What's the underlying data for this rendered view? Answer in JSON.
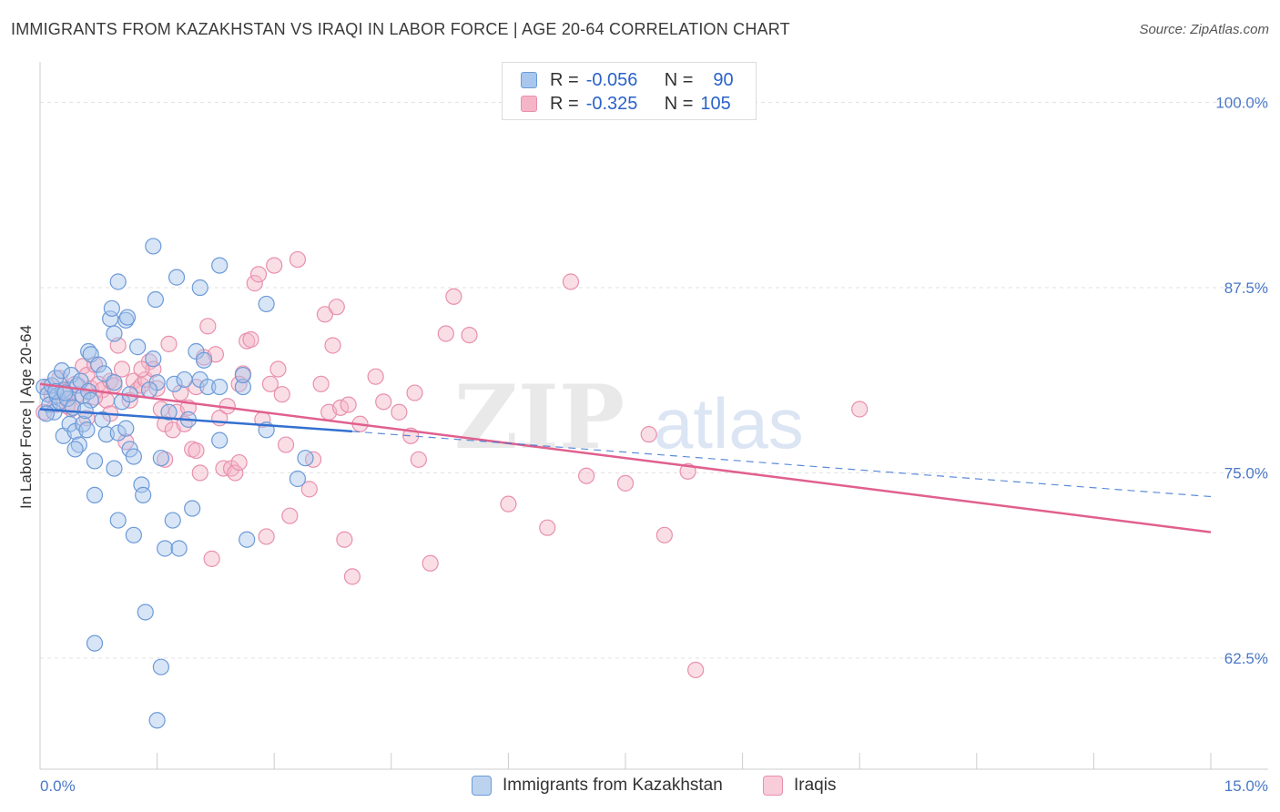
{
  "title": "IMMIGRANTS FROM KAZAKHSTAN VS IRAQI IN LABOR FORCE | AGE 20-64 CORRELATION CHART",
  "source": "Source: ZipAtlas.com",
  "watermark": {
    "zip": "ZIP",
    "atlas": "atlas"
  },
  "legend_top": {
    "rows": [
      {
        "r_label": "R =",
        "r_value": "-0.056",
        "n_label": "N =",
        "n_value": "90"
      },
      {
        "r_label": "R =",
        "r_value": "-0.325",
        "n_label": "N =",
        "n_value": "105"
      }
    ]
  },
  "legend_bottom": {
    "items": [
      "Immigrants from Kazakhstan",
      "Iraqis"
    ]
  },
  "colors": {
    "blue_fill": "#a9c6ec",
    "blue_stroke": "#6c9ad8",
    "blue_line": "#3370d0",
    "pink_fill": "#f4b5c8",
    "pink_stroke": "#e890ad",
    "pink_line": "#e0608e",
    "grid": "#e2e2e2",
    "tick_text": "#4a78c8"
  },
  "chart_data": {
    "type": "scatter",
    "title": "IMMIGRANTS FROM KAZAKHSTAN VS IRAQI IN LABOR FORCE | AGE 20-64 CORRELATION CHART",
    "xlabel": "",
    "ylabel": "In Labor Force | Age 20-64",
    "xlim": [
      0,
      15
    ],
    "ylim": [
      55,
      102
    ],
    "x_tick_labels": [
      "0.0%",
      "15.0%"
    ],
    "y_ticks": [
      62.5,
      75.0,
      87.5,
      100.0
    ],
    "y_tick_labels": [
      "62.5%",
      "75.0%",
      "87.5%",
      "100.0%"
    ],
    "grid": true,
    "legend_position": "top-center",
    "series": [
      {
        "name": "Immigrants from Kazakhstan",
        "r": -0.056,
        "n": 90,
        "trend": {
          "x": [
            0.0,
            4.0
          ],
          "y": [
            79.3,
            77.8
          ]
        },
        "trend_dashed": {
          "x": [
            4.0,
            15.0
          ],
          "y": [
            77.8,
            73.4
          ]
        },
        "points": [
          [
            0.05,
            80.8
          ],
          [
            0.1,
            80.3
          ],
          [
            0.12,
            79.6
          ],
          [
            0.15,
            80.9
          ],
          [
            0.18,
            79.1
          ],
          [
            0.2,
            81.4
          ],
          [
            0.22,
            80.2
          ],
          [
            0.25,
            79.8
          ],
          [
            0.28,
            81.9
          ],
          [
            0.3,
            80.6
          ],
          [
            0.3,
            77.5
          ],
          [
            0.35,
            80.0
          ],
          [
            0.38,
            78.3
          ],
          [
            0.4,
            81.6
          ],
          [
            0.42,
            79.4
          ],
          [
            0.45,
            77.8
          ],
          [
            0.48,
            80.9
          ],
          [
            0.5,
            76.9
          ],
          [
            0.52,
            81.2
          ],
          [
            0.55,
            78.3
          ],
          [
            0.55,
            80.2
          ],
          [
            0.6,
            77.9
          ],
          [
            0.62,
            83.2
          ],
          [
            0.62,
            80.5
          ],
          [
            0.65,
            83.0
          ],
          [
            0.65,
            79.9
          ],
          [
            0.7,
            75.8
          ],
          [
            0.7,
            73.5
          ],
          [
            0.75,
            82.3
          ],
          [
            0.8,
            78.6
          ],
          [
            0.82,
            81.7
          ],
          [
            0.85,
            77.6
          ],
          [
            0.9,
            85.4
          ],
          [
            0.92,
            86.1
          ],
          [
            0.95,
            84.4
          ],
          [
            0.95,
            81.1
          ],
          [
            0.95,
            75.3
          ],
          [
            1.0,
            87.9
          ],
          [
            1.0,
            71.8
          ],
          [
            1.0,
            77.7
          ],
          [
            1.05,
            79.8
          ],
          [
            1.1,
            85.3
          ],
          [
            1.12,
            85.5
          ],
          [
            1.15,
            80.3
          ],
          [
            1.15,
            76.6
          ],
          [
            1.2,
            76.1
          ],
          [
            1.2,
            70.8
          ],
          [
            1.25,
            83.5
          ],
          [
            1.3,
            74.2
          ],
          [
            1.32,
            73.5
          ],
          [
            1.35,
            65.6
          ],
          [
            1.45,
            90.3
          ],
          [
            1.45,
            82.7
          ],
          [
            1.48,
            86.7
          ],
          [
            1.5,
            81.1
          ],
          [
            1.5,
            58.3
          ],
          [
            1.55,
            76.0
          ],
          [
            1.55,
            61.9
          ],
          [
            1.6,
            69.9
          ],
          [
            1.65,
            79.1
          ],
          [
            1.7,
            71.8
          ],
          [
            1.72,
            81.0
          ],
          [
            1.75,
            88.2
          ],
          [
            1.78,
            69.9
          ],
          [
            1.85,
            81.3
          ],
          [
            1.9,
            78.6
          ],
          [
            1.95,
            72.6
          ],
          [
            2.0,
            83.2
          ],
          [
            2.05,
            81.3
          ],
          [
            2.1,
            82.6
          ],
          [
            2.05,
            87.5
          ],
          [
            2.15,
            80.8
          ],
          [
            0.7,
            63.5
          ],
          [
            2.3,
            77.2
          ],
          [
            2.3,
            80.8
          ],
          [
            2.6,
            80.8
          ],
          [
            2.6,
            81.6
          ],
          [
            2.65,
            70.5
          ],
          [
            2.9,
            86.4
          ],
          [
            2.9,
            77.9
          ],
          [
            3.3,
            74.6
          ],
          [
            3.4,
            76.0
          ],
          [
            2.3,
            89.0
          ],
          [
            0.08,
            79.0
          ],
          [
            0.2,
            80.5
          ],
          [
            0.32,
            80.4
          ],
          [
            0.45,
            76.6
          ],
          [
            0.58,
            79.2
          ],
          [
            1.1,
            78.0
          ],
          [
            1.4,
            80.6
          ]
        ]
      },
      {
        "name": "Iraqis",
        "r": -0.325,
        "n": 105,
        "trend": {
          "x": [
            0.0,
            15.0
          ],
          "y": [
            81.0,
            71.0
          ]
        },
        "points": [
          [
            0.05,
            79.1
          ],
          [
            0.1,
            80.8
          ],
          [
            0.15,
            80.2
          ],
          [
            0.2,
            79.6
          ],
          [
            0.25,
            81.4
          ],
          [
            0.3,
            80.5
          ],
          [
            0.35,
            80.0
          ],
          [
            0.4,
            79.3
          ],
          [
            0.45,
            81.0
          ],
          [
            0.5,
            80.3
          ],
          [
            0.55,
            82.2
          ],
          [
            0.6,
            81.6
          ],
          [
            0.65,
            80.7
          ],
          [
            0.7,
            82.3
          ],
          [
            0.75,
            81.0
          ],
          [
            0.8,
            80.6
          ],
          [
            0.85,
            79.9
          ],
          [
            0.9,
            81.2
          ],
          [
            0.95,
            80.9
          ],
          [
            1.0,
            83.6
          ],
          [
            1.05,
            82.0
          ],
          [
            1.1,
            77.1
          ],
          [
            1.15,
            79.9
          ],
          [
            1.2,
            81.2
          ],
          [
            1.25,
            80.6
          ],
          [
            1.3,
            80.9
          ],
          [
            1.35,
            81.3
          ],
          [
            1.4,
            82.5
          ],
          [
            1.45,
            82.0
          ],
          [
            1.5,
            80.7
          ],
          [
            1.55,
            79.3
          ],
          [
            1.6,
            78.3
          ],
          [
            1.65,
            83.7
          ],
          [
            1.7,
            77.9
          ],
          [
            1.75,
            79.1
          ],
          [
            1.8,
            80.4
          ],
          [
            1.85,
            78.3
          ],
          [
            1.9,
            79.4
          ],
          [
            1.95,
            76.6
          ],
          [
            2.0,
            80.8
          ],
          [
            2.05,
            75.0
          ],
          [
            2.1,
            82.8
          ],
          [
            2.15,
            84.9
          ],
          [
            2.2,
            69.2
          ],
          [
            2.25,
            83.0
          ],
          [
            2.3,
            78.7
          ],
          [
            2.35,
            75.3
          ],
          [
            2.4,
            79.5
          ],
          [
            2.45,
            75.3
          ],
          [
            2.5,
            75.0
          ],
          [
            2.55,
            75.7
          ],
          [
            2.6,
            81.7
          ],
          [
            2.65,
            83.9
          ],
          [
            2.7,
            84.0
          ],
          [
            2.75,
            87.8
          ],
          [
            2.8,
            88.4
          ],
          [
            2.85,
            78.6
          ],
          [
            2.9,
            70.7
          ],
          [
            2.95,
            81.0
          ],
          [
            3.0,
            89.0
          ],
          [
            3.05,
            82.0
          ],
          [
            3.1,
            80.3
          ],
          [
            3.15,
            76.9
          ],
          [
            3.2,
            72.1
          ],
          [
            3.3,
            89.4
          ],
          [
            3.45,
            73.9
          ],
          [
            3.5,
            75.9
          ],
          [
            3.6,
            81.0
          ],
          [
            3.65,
            85.7
          ],
          [
            3.7,
            79.1
          ],
          [
            3.75,
            83.6
          ],
          [
            3.8,
            86.2
          ],
          [
            3.85,
            79.4
          ],
          [
            3.9,
            70.5
          ],
          [
            3.95,
            79.6
          ],
          [
            4.0,
            68.0
          ],
          [
            4.1,
            78.3
          ],
          [
            4.3,
            81.5
          ],
          [
            4.4,
            79.8
          ],
          [
            4.6,
            79.1
          ],
          [
            4.75,
            77.5
          ],
          [
            4.8,
            80.4
          ],
          [
            4.85,
            75.9
          ],
          [
            5.0,
            68.9
          ],
          [
            5.2,
            84.4
          ],
          [
            5.3,
            86.9
          ],
          [
            5.5,
            84.3
          ],
          [
            6.0,
            72.9
          ],
          [
            6.5,
            71.3
          ],
          [
            6.8,
            87.9
          ],
          [
            7.0,
            74.8
          ],
          [
            7.5,
            74.3
          ],
          [
            7.8,
            77.6
          ],
          [
            8.0,
            70.8
          ],
          [
            8.3,
            75.1
          ],
          [
            8.4,
            61.7
          ],
          [
            10.5,
            79.3
          ],
          [
            2.0,
            76.5
          ],
          [
            1.6,
            75.9
          ],
          [
            1.3,
            82.0
          ],
          [
            0.9,
            79.0
          ],
          [
            0.7,
            80.1
          ],
          [
            0.6,
            78.7
          ],
          [
            0.35,
            79.5
          ],
          [
            2.55,
            81.0
          ]
        ]
      }
    ]
  }
}
